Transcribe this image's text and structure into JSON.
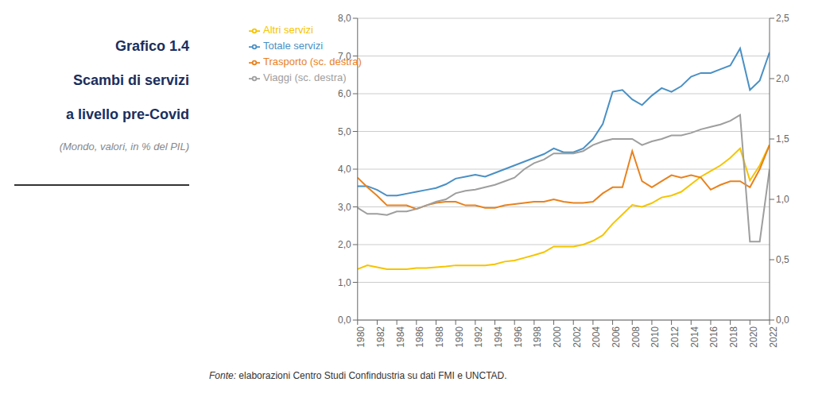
{
  "chart_data": {
    "type": "line",
    "title": "Grafico 1.4\nScambi di servizi\na livello pre-Covid",
    "subtitle": "(Mondo, valori, in % del PIL)",
    "annotations": [
      "Fonte: elaborazioni Centro Studi Confindustria su dati FMI e UNCTAD."
    ],
    "x": [
      1980,
      1981,
      1982,
      1983,
      1984,
      1985,
      1986,
      1987,
      1988,
      1989,
      1990,
      1991,
      1992,
      1993,
      1994,
      1995,
      1996,
      1997,
      1998,
      1999,
      2000,
      2001,
      2002,
      2003,
      2004,
      2005,
      2006,
      2007,
      2008,
      2009,
      2010,
      2011,
      2012,
      2013,
      2014,
      2015,
      2016,
      2017,
      2018,
      2019,
      2020,
      2021,
      2022
    ],
    "series": [
      {
        "name": "Totale servizi",
        "color": "#4a90c4",
        "values": [
          3.55,
          3.55,
          3.45,
          3.3,
          3.3,
          3.35,
          3.4,
          3.45,
          3.5,
          3.6,
          3.75,
          3.8,
          3.85,
          3.8,
          3.9,
          4.0,
          4.1,
          4.2,
          4.3,
          4.4,
          4.55,
          4.45,
          4.45,
          4.55,
          4.8,
          5.2,
          6.05,
          6.1,
          5.85,
          5.7,
          5.95,
          6.15,
          6.05,
          6.2,
          6.45,
          6.55,
          6.55,
          6.65,
          6.75,
          7.2,
          6.1,
          6.35,
          7.1
        ]
      },
      {
        "name": "Altri servizi",
        "color": "#f5c400",
        "values": [
          1.35,
          1.45,
          1.4,
          1.35,
          1.35,
          1.35,
          1.38,
          1.38,
          1.4,
          1.42,
          1.45,
          1.45,
          1.45,
          1.45,
          1.48,
          1.55,
          1.58,
          1.65,
          1.72,
          1.8,
          1.95,
          1.95,
          1.95,
          2.0,
          2.1,
          2.25,
          2.55,
          2.8,
          3.05,
          3.0,
          3.1,
          3.25,
          3.3,
          3.4,
          3.6,
          3.8,
          3.95,
          4.1,
          4.3,
          4.55,
          3.7,
          4.1,
          4.65
        ]
      },
      {
        "name": "Trasporto (sc. destra)",
        "color": "#e8821e",
        "axis": "y2",
        "values": [
          1.18,
          1.1,
          1.03,
          0.95,
          0.95,
          0.95,
          0.92,
          0.95,
          0.97,
          0.98,
          0.98,
          0.95,
          0.95,
          0.93,
          0.93,
          0.95,
          0.96,
          0.97,
          0.98,
          0.98,
          1.0,
          0.98,
          0.97,
          0.97,
          0.98,
          1.05,
          1.1,
          1.1,
          1.4,
          1.15,
          1.1,
          1.15,
          1.2,
          1.18,
          1.2,
          1.18,
          1.08,
          1.12,
          1.15,
          1.15,
          1.1,
          1.25,
          1.45
        ]
      },
      {
        "name": "Viaggi (sc. destra)",
        "color": "#9e9e9e",
        "axis": "y2",
        "values": [
          0.93,
          0.88,
          0.88,
          0.87,
          0.9,
          0.9,
          0.92,
          0.95,
          0.98,
          1.0,
          1.05,
          1.07,
          1.08,
          1.1,
          1.12,
          1.15,
          1.18,
          1.25,
          1.3,
          1.33,
          1.38,
          1.38,
          1.38,
          1.4,
          1.45,
          1.48,
          1.5,
          1.5,
          1.5,
          1.45,
          1.48,
          1.5,
          1.53,
          1.53,
          1.55,
          1.58,
          1.6,
          1.62,
          1.65,
          1.7,
          0.65,
          0.65,
          1.25
        ]
      }
    ],
    "xlim": [
      1980,
      2022
    ],
    "xticks": [
      1980,
      1982,
      1984,
      1986,
      1988,
      1990,
      1992,
      1994,
      1996,
      1998,
      2000,
      2002,
      2004,
      2006,
      2008,
      2010,
      2012,
      2014,
      2016,
      2018,
      2020,
      2022
    ],
    "ylim": [
      0.0,
      8.0
    ],
    "yticks": [
      {
        "value": 0.0,
        "label": "0,0"
      },
      {
        "value": 1.0,
        "label": "1,0"
      },
      {
        "value": 2.0,
        "label": "2,0"
      },
      {
        "value": 3.0,
        "label": "3,0"
      },
      {
        "value": 4.0,
        "label": "4,0"
      },
      {
        "value": 5.0,
        "label": "5,0"
      },
      {
        "value": 6.0,
        "label": "6,0"
      },
      {
        "value": 7.0,
        "label": "7,0"
      },
      {
        "value": 8.0,
        "label": "8,0"
      }
    ],
    "y2lim": [
      0.0,
      2.5
    ],
    "y2ticks": [
      {
        "value": 0.0,
        "label": "0,0"
      },
      {
        "value": 0.5,
        "label": "0,5"
      },
      {
        "value": 1.0,
        "label": "1,0"
      },
      {
        "value": 1.5,
        "label": "1,5"
      },
      {
        "value": 2.0,
        "label": "2,0"
      },
      {
        "value": 2.5,
        "label": "2,5"
      }
    ],
    "grid": true,
    "legend": "upper left"
  }
}
